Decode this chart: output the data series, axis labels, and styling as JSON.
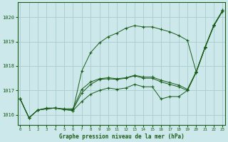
{
  "background_color": "#cce8ea",
  "grid_color": "#aacccc",
  "line_color": "#1a5c1a",
  "xlabel": "Graphe pression niveau de la mer (hPa)",
  "ylim": [
    1015.6,
    1020.6
  ],
  "yticks": [
    1016,
    1017,
    1018,
    1019,
    1020
  ],
  "xlim": [
    -0.3,
    23.3
  ],
  "xtick_labels": [
    "0",
    "1",
    "2",
    "3",
    "4",
    "5",
    "6",
    "7",
    "8",
    "9",
    "10",
    "11",
    "12",
    "13",
    "14",
    "15",
    "16",
    "17",
    "18",
    "19",
    "20",
    "21",
    "22",
    "23"
  ],
  "lines": [
    [
      1016.65,
      1015.88,
      1016.2,
      1016.25,
      1016.28,
      1016.22,
      1016.18,
      1016.55,
      1016.85,
      1017.0,
      1017.1,
      1017.05,
      1017.1,
      1017.25,
      1017.15,
      1017.15,
      1016.65,
      1016.75,
      1016.75,
      1017.0,
      1017.75,
      1018.75,
      1019.65,
      1020.25
    ],
    [
      1016.65,
      1015.88,
      1016.2,
      1016.25,
      1016.28,
      1016.22,
      1016.22,
      1016.9,
      1017.25,
      1017.45,
      1017.48,
      1017.45,
      1017.5,
      1017.6,
      1017.5,
      1017.5,
      1017.35,
      1017.25,
      1017.15,
      1017.0,
      1017.75,
      1018.75,
      1019.65,
      1020.25
    ],
    [
      1016.65,
      1015.88,
      1016.2,
      1016.28,
      1016.28,
      1016.25,
      1016.25,
      1017.05,
      1017.35,
      1017.48,
      1017.52,
      1017.48,
      1017.52,
      1017.62,
      1017.55,
      1017.55,
      1017.42,
      1017.32,
      1017.22,
      1017.05,
      1017.78,
      1018.78,
      1019.68,
      1020.28
    ],
    [
      1016.65,
      1015.88,
      1016.2,
      1016.25,
      1016.28,
      1016.22,
      1016.18,
      1017.8,
      1018.55,
      1018.95,
      1019.2,
      1019.35,
      1019.55,
      1019.65,
      1019.6,
      1019.6,
      1019.5,
      1019.4,
      1019.25,
      1019.05,
      1017.75,
      1018.75,
      1019.65,
      1020.28
    ]
  ]
}
